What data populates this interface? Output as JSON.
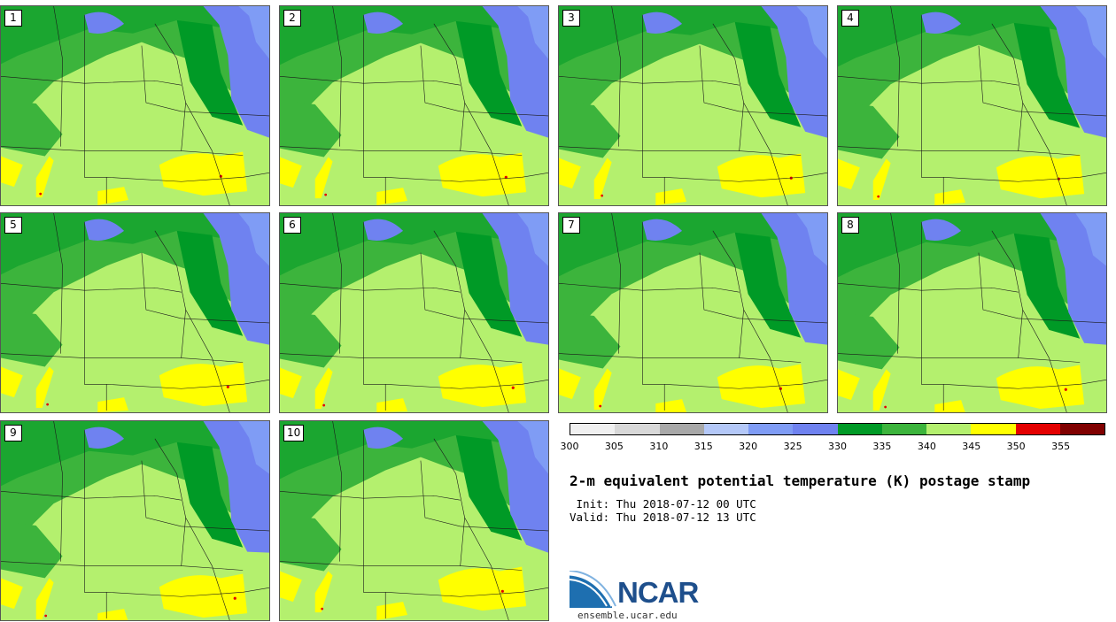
{
  "panels": [
    {
      "label": "1"
    },
    {
      "label": "2"
    },
    {
      "label": "3"
    },
    {
      "label": "4"
    },
    {
      "label": "5"
    },
    {
      "label": "6"
    },
    {
      "label": "7"
    },
    {
      "label": "8"
    },
    {
      "label": "9"
    },
    {
      "label": "10"
    }
  ],
  "colorbar": {
    "colors": [
      "#f0f0f0",
      "#d8d8d8",
      "#a8a8a8",
      "#b4c8f8",
      "#7f9cf5",
      "#6f82f0",
      "#009a26",
      "#3cb43c",
      "#b4f06e",
      "#ffff00",
      "#e40000",
      "#800000"
    ],
    "ticks": [
      "300",
      "305",
      "310",
      "315",
      "320",
      "325",
      "330",
      "335",
      "340",
      "345",
      "350",
      "355"
    ],
    "min": 300,
    "max": 360
  },
  "map_colors": {
    "light_green": "#b4f06e",
    "mid_green": "#3cb43c",
    "dark_green": "#009a26",
    "yellow": "#ffff00",
    "blue": "#6f82f0",
    "light_blue": "#7f9cf5",
    "red": "#e40000"
  },
  "title": "2-m equivalent potential temperature (K) postage stamp",
  "init": " Init: Thu 2018-07-12 00 UTC",
  "valid": "Valid: Thu 2018-07-12 13 UTC",
  "logo": {
    "text": "NCAR",
    "url": "ensemble.ucar.edu"
  }
}
